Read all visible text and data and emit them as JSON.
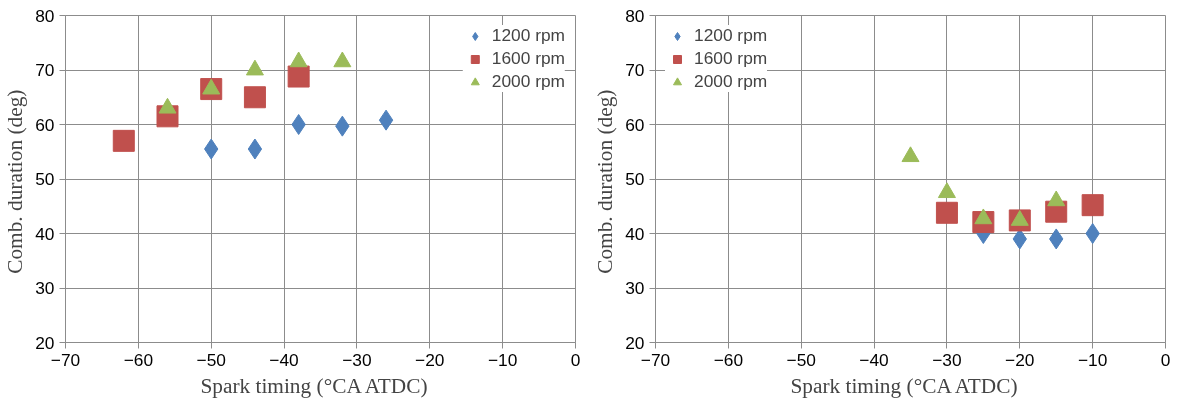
{
  "chart_data": [
    {
      "type": "scatter",
      "xlabel": "Spark timing   (°CA ATDC)",
      "ylabel": "Comb. duration  (deg)",
      "xlim": [
        -70,
        0
      ],
      "xticks": [
        -70,
        -60,
        -50,
        -40,
        -30,
        -20,
        -10,
        0
      ],
      "ylim": [
        20,
        80
      ],
      "yticks": [
        20,
        30,
        40,
        50,
        60,
        70,
        80
      ],
      "grid": true,
      "legend": "top right",
      "series": [
        {
          "name": "1200 rpm",
          "color": "#4f81bd",
          "marker": "diamond",
          "x": [
            -50,
            -44,
            -38,
            -32,
            -26
          ],
          "values": [
            55.5,
            55.5,
            60,
            59.7,
            60.8
          ]
        },
        {
          "name": "1600 rpm",
          "color": "#c0504d",
          "marker": "square",
          "x": [
            -62,
            -56,
            -50,
            -44,
            -38
          ],
          "values": [
            57,
            61.5,
            66.5,
            65,
            68.8
          ]
        },
        {
          "name": "2000 rpm",
          "color": "#9bbb59",
          "marker": "triangle",
          "x": [
            -56,
            -50,
            -44,
            -38,
            -32
          ],
          "values": [
            63,
            66.5,
            70,
            71.5,
            71.5
          ]
        }
      ]
    },
    {
      "type": "scatter",
      "xlabel": "Spark timing   (°CA ATDC)",
      "ylabel": "Comb. duration  (deg)",
      "xlim": [
        -70,
        0
      ],
      "xticks": [
        -70,
        -60,
        -50,
        -40,
        -30,
        -20,
        -10,
        0
      ],
      "ylim": [
        20,
        80
      ],
      "yticks": [
        20,
        30,
        40,
        50,
        60,
        70,
        80
      ],
      "grid": true,
      "legend": "top left",
      "series": [
        {
          "name": "1200 rpm",
          "color": "#4f81bd",
          "marker": "diamond",
          "x": [
            -25,
            -20,
            -15,
            -10
          ],
          "values": [
            40,
            39,
            39,
            40
          ]
        },
        {
          "name": "1600 rpm",
          "color": "#c0504d",
          "marker": "square",
          "x": [
            -30,
            -25,
            -20,
            -15,
            -10
          ],
          "values": [
            43.8,
            42.1,
            42.4,
            44,
            45.2
          ]
        },
        {
          "name": "2000 rpm",
          "color": "#9bbb59",
          "marker": "triangle",
          "x": [
            -35,
            -30,
            -25,
            -20,
            -15
          ],
          "values": [
            54.1,
            47.5,
            42.7,
            42.4,
            46
          ]
        }
      ]
    }
  ]
}
